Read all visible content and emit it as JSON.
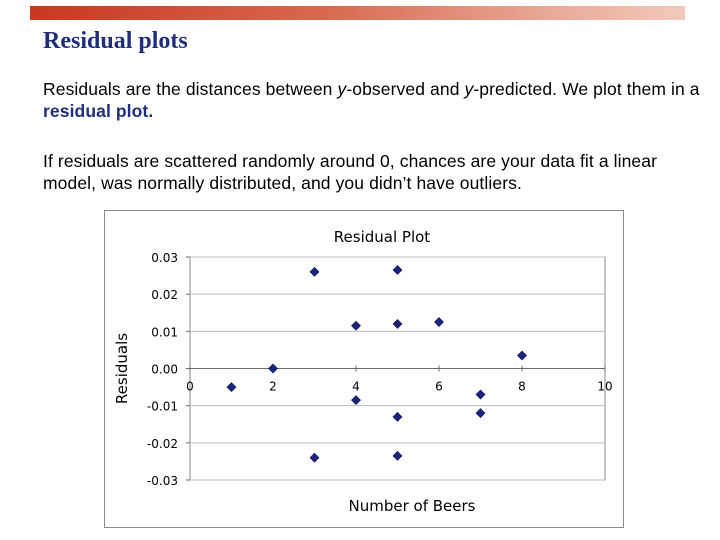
{
  "slide": {
    "title": "Residual plots",
    "p1": {
      "a": "Residuals are the distances between ",
      "b": "y",
      "c": "-observed and ",
      "d": "y",
      "e": "-predicted. We plot them in a ",
      "f": "residual plot",
      "g": "."
    },
    "p2": "If residuals are scattered randomly around 0, chances are your data fit a linear model, was normally distributed, and you didn’t have outliers."
  },
  "chart_data": {
    "type": "scatter",
    "title": "Residual Plot",
    "xlabel": "Number of Beers",
    "ylabel": "Residuals",
    "xlim": [
      0,
      10
    ],
    "ylim": [
      -0.03,
      0.03
    ],
    "xticks": [
      0,
      2,
      4,
      6,
      8,
      10
    ],
    "xtick_labels": [
      "0",
      "2",
      "4",
      "6",
      "8",
      "10"
    ],
    "yticks": [
      0.03,
      0.02,
      0.01,
      0.0,
      -0.01,
      -0.02,
      -0.03
    ],
    "ytick_labels": [
      "0.03",
      "0.02",
      "0.01",
      "0.00",
      "-0.01",
      "-0.02",
      "-0.03"
    ],
    "grid": "horizontal",
    "legend": "none",
    "marker_color": "#1a237e",
    "points": [
      {
        "x": 1,
        "y": -0.005
      },
      {
        "x": 2,
        "y": 0.0
      },
      {
        "x": 3,
        "y": 0.026
      },
      {
        "x": 3,
        "y": -0.024
      },
      {
        "x": 4,
        "y": 0.0115
      },
      {
        "x": 4,
        "y": -0.0085
      },
      {
        "x": 5,
        "y": 0.0265
      },
      {
        "x": 5,
        "y": 0.012
      },
      {
        "x": 5,
        "y": -0.013
      },
      {
        "x": 5,
        "y": -0.0235
      },
      {
        "x": 6,
        "y": 0.0125
      },
      {
        "x": 7,
        "y": -0.007
      },
      {
        "x": 7,
        "y": -0.012
      },
      {
        "x": 8,
        "y": 0.0035
      }
    ]
  }
}
